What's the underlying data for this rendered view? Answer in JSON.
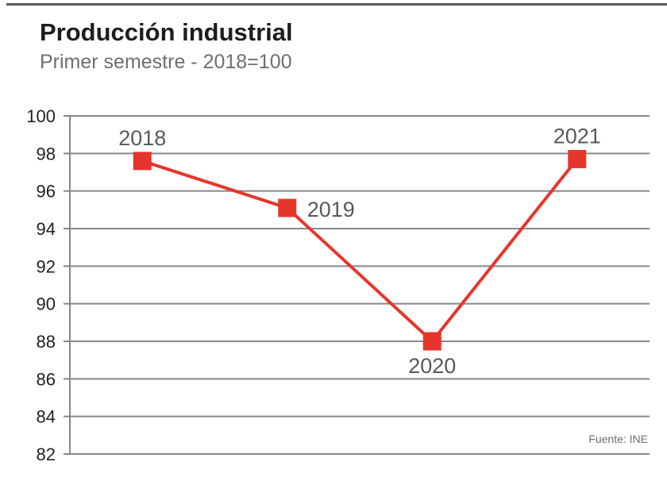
{
  "header": {
    "title": "Producción industrial",
    "subtitle": "Primer semestre - 2018=100"
  },
  "source": "Fuente: INE",
  "colors": {
    "accent_red": "#e6362c",
    "grid_gray": "#868789",
    "axis_text": "#231f20",
    "year_label": "#58595b",
    "subtitle_gray": "#6d6e71",
    "rule_gray": "#58595b"
  },
  "chart_data": {
    "type": "line",
    "categories": [
      "2018",
      "2019",
      "2020",
      "2021"
    ],
    "values": [
      97.6,
      95.1,
      88.0,
      97.7
    ],
    "title": "Producción industrial",
    "subtitle": "Primer semestre - 2018=100",
    "xlabel": "",
    "ylabel": "",
    "ylim": [
      82,
      100
    ],
    "yticks": [
      100,
      98,
      96,
      94,
      92,
      90,
      88,
      86,
      84,
      82
    ],
    "grid": true,
    "legend": "none",
    "marker": "square",
    "line_color": "#e6362c",
    "point_label_positions": [
      "above",
      "right",
      "below",
      "above"
    ],
    "source": "Fuente: INE"
  }
}
